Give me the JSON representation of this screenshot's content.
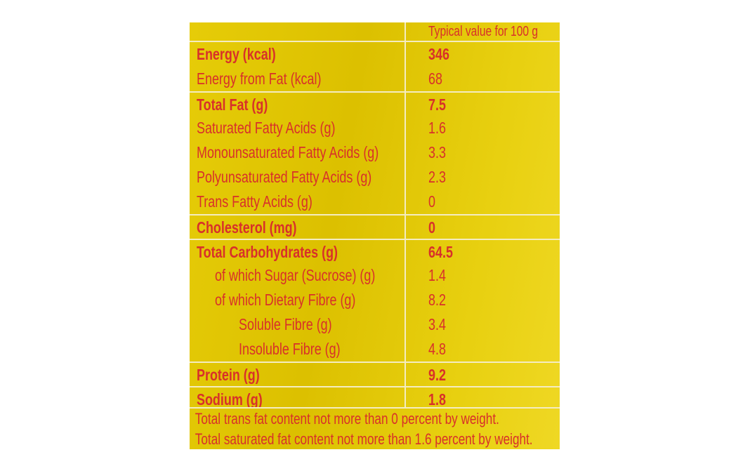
{
  "table": {
    "header": "Typical value for 100 g",
    "rows": [
      {
        "name": "Energy (kcal)",
        "value": "346",
        "bold": true,
        "indent": 0,
        "line": false
      },
      {
        "name": "Energy from Fat (kcal)",
        "value": "68",
        "bold": false,
        "indent": 0,
        "line": false
      },
      {
        "name": "Total Fat (g)",
        "value": "7.5",
        "bold": true,
        "indent": 0,
        "line": true
      },
      {
        "name": "Saturated Fatty Acids (g)",
        "value": "1.6",
        "bold": false,
        "indent": 0,
        "line": false
      },
      {
        "name": "Monounsaturated Fatty Acids (g)",
        "value": "3.3",
        "bold": false,
        "indent": 0,
        "line": false
      },
      {
        "name": "Polyunsaturated Fatty Acids (g)",
        "value": "2.3",
        "bold": false,
        "indent": 0,
        "line": false
      },
      {
        "name": "Trans Fatty Acids (g)",
        "value": "0",
        "bold": false,
        "indent": 0,
        "line": false
      },
      {
        "name": "Cholesterol (mg)",
        "value": "0",
        "bold": true,
        "indent": 0,
        "line": true
      },
      {
        "name": "Total Carbohydrates (g)",
        "value": "64.5",
        "bold": true,
        "indent": 0,
        "line": true
      },
      {
        "name": "of which Sugar (Sucrose) (g)",
        "value": "1.4",
        "bold": false,
        "indent": 1,
        "line": false
      },
      {
        "name": "of which Dietary Fibre (g)",
        "value": "8.2",
        "bold": false,
        "indent": 1,
        "line": false
      },
      {
        "name": "Soluble Fibre (g)",
        "value": "3.4",
        "bold": false,
        "indent": 2,
        "line": false
      },
      {
        "name": "Insoluble Fibre (g)",
        "value": "4.8",
        "bold": false,
        "indent": 2,
        "line": false
      },
      {
        "name": "Protein (g)",
        "value": "9.2",
        "bold": true,
        "indent": 0,
        "line": true
      },
      {
        "name": "Sodium (g)",
        "value": "1.8",
        "bold": true,
        "indent": 0,
        "line": true
      }
    ],
    "footnotes": [
      "Total trans fat content not more than 0 percent by weight.",
      "Total saturated fat content not more than 1.6 percent by weight."
    ]
  },
  "colors": {
    "background": "#dcc000",
    "text": "#d8302a",
    "lines": "#f4ecc0"
  }
}
